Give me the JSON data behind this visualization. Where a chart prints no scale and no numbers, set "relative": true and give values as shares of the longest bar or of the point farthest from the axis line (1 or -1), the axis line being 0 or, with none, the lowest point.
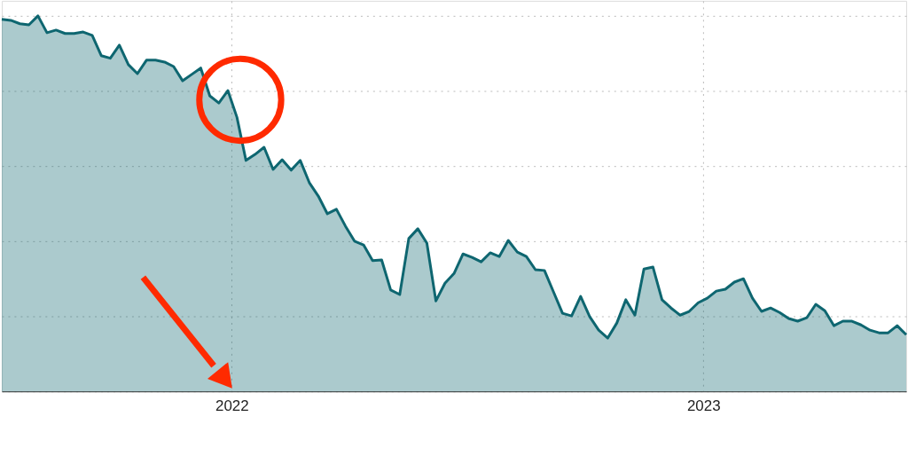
{
  "chart_data": {
    "type": "area",
    "relative": true,
    "grid": true,
    "legend": false,
    "line_style": "solid",
    "marker": "none",
    "xlim": [
      "2021-07-07",
      "2023-06-07"
    ],
    "xticks": [
      {
        "value": "2022-01-01",
        "label": "2022"
      },
      {
        "value": "2023-01-01",
        "label": "2023"
      }
    ],
    "tick_labels": "x",
    "x": [
      "2021-07-07",
      "2021-07-14",
      "2021-07-21",
      "2021-07-28",
      "2021-08-04",
      "2021-08-11",
      "2021-08-18",
      "2021-08-25",
      "2021-09-01",
      "2021-09-08",
      "2021-09-15",
      "2021-09-22",
      "2021-09-29",
      "2021-10-06",
      "2021-10-13",
      "2021-10-20",
      "2021-10-27",
      "2021-11-03",
      "2021-11-10",
      "2021-11-17",
      "2021-11-24",
      "2021-12-01",
      "2021-12-08",
      "2021-12-15",
      "2021-12-22",
      "2021-12-29",
      "2022-01-05",
      "2022-01-12",
      "2022-01-19",
      "2022-01-26",
      "2022-02-02",
      "2022-02-09",
      "2022-02-16",
      "2022-02-23",
      "2022-03-02",
      "2022-03-09",
      "2022-03-16",
      "2022-03-23",
      "2022-03-30",
      "2022-04-06",
      "2022-04-13",
      "2022-04-20",
      "2022-04-27",
      "2022-05-04",
      "2022-05-11",
      "2022-05-18",
      "2022-05-25",
      "2022-06-01",
      "2022-06-08",
      "2022-06-15",
      "2022-06-22",
      "2022-06-29",
      "2022-07-06",
      "2022-07-13",
      "2022-07-20",
      "2022-07-27",
      "2022-08-03",
      "2022-08-10",
      "2022-08-17",
      "2022-08-24",
      "2022-08-31",
      "2022-09-07",
      "2022-09-14",
      "2022-09-21",
      "2022-09-28",
      "2022-10-05",
      "2022-10-12",
      "2022-10-19",
      "2022-10-26",
      "2022-11-02",
      "2022-11-09",
      "2022-11-16",
      "2022-11-23",
      "2022-11-30",
      "2022-12-07",
      "2022-12-14",
      "2022-12-21",
      "2022-12-28",
      "2023-01-04",
      "2023-01-11",
      "2023-01-18",
      "2023-01-25",
      "2023-02-01",
      "2023-02-08",
      "2023-02-15",
      "2023-02-22",
      "2023-03-01",
      "2023-03-08",
      "2023-03-15",
      "2023-03-22",
      "2023-03-29",
      "2023-04-05",
      "2023-04-12",
      "2023-04-19",
      "2023-04-26",
      "2023-05-03",
      "2023-05-10",
      "2023-05-17",
      "2023-05-24",
      "2023-05-31",
      "2023-06-07"
    ],
    "series": [
      {
        "color": "#0e6670",
        "values": [
          0.991,
          0.988,
          0.979,
          0.976,
          1,
          0.955,
          0.962,
          0.953,
          0.953,
          0.957,
          0.948,
          0.894,
          0.887,
          0.922,
          0.87,
          0.846,
          0.882,
          0.882,
          0.877,
          0.865,
          0.827,
          0.844,
          0.861,
          0.787,
          0.768,
          0.801,
          0.73,
          0.615,
          0.631,
          0.65,
          0.591,
          0.617,
          0.589,
          0.615,
          0.556,
          0.52,
          0.473,
          0.485,
          0.44,
          0.4,
          0.39,
          0.348,
          0.35,
          0.27,
          0.258,
          0.407,
          0.433,
          0.395,
          0.241,
          0.288,
          0.314,
          0.366,
          0.357,
          0.345,
          0.369,
          0.359,
          0.402,
          0.371,
          0.359,
          0.324,
          0.322,
          0.265,
          0.208,
          0.201,
          0.253,
          0.199,
          0.163,
          0.142,
          0.182,
          0.244,
          0.203,
          0.326,
          0.331,
          0.244,
          0.222,
          0.203,
          0.213,
          0.236,
          0.248,
          0.267,
          0.272,
          0.291,
          0.3,
          0.248,
          0.213,
          0.222,
          0.21,
          0.194,
          0.187,
          0.196,
          0.232,
          0.215,
          0.175,
          0.187,
          0.187,
          0.177,
          0.163,
          0.156,
          0.156,
          0.175,
          0.151
        ]
      }
    ]
  }
}
